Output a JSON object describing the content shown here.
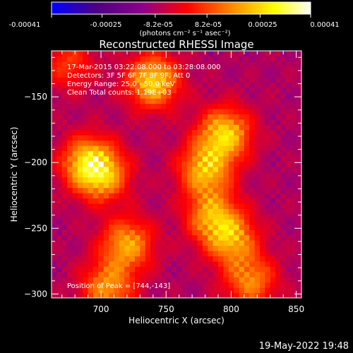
{
  "colorbar": {
    "tick_labels": [
      "-0.00041",
      "-0.00025",
      "-8.2e-05",
      "8.2e-05",
      "0.00025",
      "0.00041"
    ],
    "tick_values": [
      -0.00041,
      -0.00025,
      -8.2e-05,
      8.2e-05,
      0.00025,
      0.00041
    ],
    "range": [
      -0.00041,
      0.00041
    ],
    "units": "(photons cm⁻² s⁻¹ asec⁻²)"
  },
  "chart_data": {
    "type": "heatmap",
    "title": "Reconstructed RHESSI Image",
    "xlabel": "Heliocentric X (arcsec)",
    "ylabel": "Heliocentric Y (arcsec)",
    "xlim": [
      662,
      854
    ],
    "ylim": [
      -303,
      -115
    ],
    "x_ticks": [
      700,
      750,
      800,
      850
    ],
    "y_ticks": [
      -150,
      -200,
      -250,
      -300
    ],
    "x_tick_labels": [
      "700",
      "750",
      "800",
      "850"
    ],
    "y_tick_labels": [
      "−150",
      "−200",
      "−250",
      "−300"
    ],
    "colormap": [
      "#0000ff",
      "#4b0082",
      "#8b008b",
      "#ff0000",
      "#ff8c00",
      "#ffff00",
      "#ffffff"
    ],
    "annotations": [
      "17-Mar-2015 03:22:08.000 to 03:28:08.000",
      "Detectors: 3F 5F 6F 7F 8F 9F, Att 0",
      "Energy Range: 25.0 - 50.0 keV",
      "Clean    Total counts: 1.19E+03"
    ],
    "peak_label": "Position of Peak = [744,-143]",
    "peak": [
      744,
      -143
    ],
    "sources": [
      {
        "x": 740,
        "y": -138,
        "value": 0.00041
      },
      {
        "x": 690,
        "y": -200,
        "value": 0.00038
      },
      {
        "x": 702,
        "y": -210,
        "value": 0.00028
      },
      {
        "x": 795,
        "y": -178,
        "value": 0.0004
      },
      {
        "x": 780,
        "y": -205,
        "value": 0.00036
      },
      {
        "x": 785,
        "y": -240,
        "value": 0.0003
      },
      {
        "x": 800,
        "y": -258,
        "value": 0.00032
      },
      {
        "x": 815,
        "y": -290,
        "value": 0.00028
      },
      {
        "x": 720,
        "y": -262,
        "value": 0.00033
      },
      {
        "x": 705,
        "y": -295,
        "value": 0.0003
      },
      {
        "x": 675,
        "y": -125,
        "value": 0.00018
      }
    ]
  },
  "footer": {
    "timestamp": "19-May-2022 19:48"
  }
}
